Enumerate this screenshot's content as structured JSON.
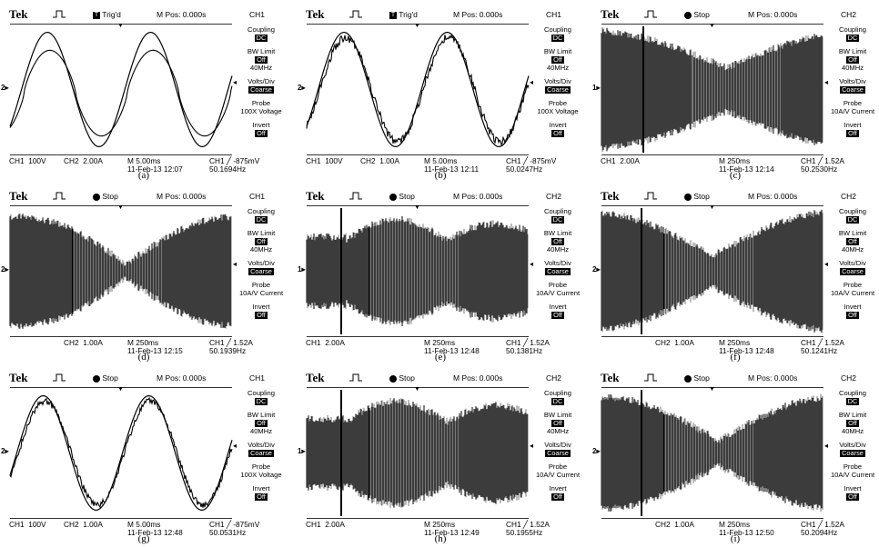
{
  "panels": [
    {
      "caption": "(a)",
      "brand": "Tek",
      "trigger_status": "Trig'd",
      "trigger_icon": "box-T",
      "m_pos": "M Pos: 0.000s",
      "channel": "CH1",
      "menu": [
        {
          "label": "Coupling",
          "value": "DC"
        },
        {
          "label": "BW Limit",
          "value": "Off",
          "extra": "40MHz"
        },
        {
          "label": "Volts/Div",
          "value": "Coarse"
        },
        {
          "label": "Probe",
          "value": "",
          "extra": "100X Voltage"
        },
        {
          "label": "Invert",
          "value": "Off"
        }
      ],
      "markers": [
        "2"
      ],
      "status_left1": "CH1  100V",
      "status_left2": "CH2  2.00A",
      "timebase": "M 5.00ms",
      "datetime": "11-Feb-13 12:07",
      "trig_level": "CH1 ╱ -875mV",
      "freq": "50.1694Hz",
      "trace": "sine2"
    },
    {
      "caption": "(b)",
      "brand": "Tek",
      "trigger_status": "Trig'd",
      "trigger_icon": "box-T",
      "m_pos": "M Pos: 0.000s",
      "channel": "CH1",
      "menu": [
        {
          "label": "Coupling",
          "value": "DC"
        },
        {
          "label": "BW Limit",
          "value": "Off",
          "extra": "40MHz"
        },
        {
          "label": "Volts/Div",
          "value": "Coarse"
        },
        {
          "label": "Probe",
          "value": "",
          "extra": "100X Voltage"
        },
        {
          "label": "Invert",
          "value": "Off"
        }
      ],
      "markers": [
        "2"
      ],
      "status_left1": "CH1  100V",
      "status_left2": "CH2  1.00A",
      "timebase": "M 5.00ms",
      "datetime": "11-Feb-13 12:11",
      "trig_level": "CH1 ╱ -875mV",
      "freq": "50.0247Hz",
      "trace": "sine_noisy"
    },
    {
      "caption": "(c)",
      "brand": "Tek",
      "trigger_status": "Stop",
      "trigger_icon": "dot",
      "m_pos": "M Pos: 0.000s",
      "channel": "CH2",
      "menu": [
        {
          "label": "Coupling",
          "value": "DC"
        },
        {
          "label": "BW Limit",
          "value": "Off",
          "extra": "40MHz"
        },
        {
          "label": "Volts/Div",
          "value": "Coarse"
        },
        {
          "label": "Probe",
          "value": "",
          "extra": "10A/V Current"
        },
        {
          "label": "Invert",
          "value": "Off"
        }
      ],
      "markers": [
        "1"
      ],
      "status_left1": "CH1  2.00A",
      "status_left2": "",
      "timebase": "M 250ms",
      "datetime": "11-Feb-13 12:14",
      "trig_level": "CH1 ╱ 1.52A",
      "freq": "50.2530Hz",
      "trace": "beat_c"
    },
    {
      "caption": "(d)",
      "brand": "Tek",
      "trigger_status": "Stop",
      "trigger_icon": "dot",
      "m_pos": "M Pos: 0.000s",
      "channel": "CH1",
      "menu": [
        {
          "label": "Coupling",
          "value": "DC"
        },
        {
          "label": "BW Limit",
          "value": "Off",
          "extra": "40MHz"
        },
        {
          "label": "Volts/Div",
          "value": "Coarse"
        },
        {
          "label": "Probe",
          "value": "",
          "extra": "10A/V Current"
        },
        {
          "label": "Invert",
          "value": "Off"
        }
      ],
      "markers": [
        "2"
      ],
      "status_left1": "",
      "status_left2": "CH2  1.00A",
      "timebase": "M 250ms",
      "datetime": "11-Feb-13 12:15",
      "trig_level": "CH1 ╱ 1.52A",
      "freq": "50.1939Hz",
      "trace": "beat_d"
    },
    {
      "caption": "(e)",
      "brand": "Tek",
      "trigger_status": "Stop",
      "trigger_icon": "dot",
      "m_pos": "M Pos: 0.000s",
      "channel": "CH2",
      "menu": [
        {
          "label": "Coupling",
          "value": "DC"
        },
        {
          "label": "BW Limit",
          "value": "Off",
          "extra": "40MHz"
        },
        {
          "label": "Volts/Div",
          "value": "Coarse"
        },
        {
          "label": "Probe",
          "value": "",
          "extra": "10A/V Current"
        },
        {
          "label": "Invert",
          "value": "Off"
        }
      ],
      "markers": [
        "1"
      ],
      "status_left1": "CH1  2.00A",
      "status_left2": "",
      "timebase": "M 250ms",
      "datetime": "11-Feb-13 12:48",
      "trig_level": "CH1 ╱ 1.52A",
      "freq": "50.1381Hz",
      "trace": "beat_e"
    },
    {
      "caption": "(f)",
      "brand": "Tek",
      "trigger_status": "Stop",
      "trigger_icon": "dot",
      "m_pos": "M Pos: 0.000s",
      "channel": "CH2",
      "menu": [
        {
          "label": "Coupling",
          "value": "DC"
        },
        {
          "label": "BW Limit",
          "value": "Off",
          "extra": "40MHz"
        },
        {
          "label": "Volts/Div",
          "value": "Coarse"
        },
        {
          "label": "Probe",
          "value": "",
          "extra": "10A/V Current"
        },
        {
          "label": "Invert",
          "value": "Off"
        }
      ],
      "markers": [
        "2"
      ],
      "status_left1": "",
      "status_left2": "CH2  1.00A",
      "timebase": "M 250ms",
      "datetime": "11-Feb-13 12:48",
      "trig_level": "CH1 ╱ 1.52A",
      "freq": "50.1241Hz",
      "trace": "beat_f"
    },
    {
      "caption": "(g)",
      "brand": "Tek",
      "trigger_status": "Stop",
      "trigger_icon": "dot",
      "m_pos": "M Pos: 0.000s",
      "channel": "CH1",
      "menu": [
        {
          "label": "Coupling",
          "value": "DC"
        },
        {
          "label": "BW Limit",
          "value": "Off",
          "extra": "40MHz"
        },
        {
          "label": "Volts/Div",
          "value": "Coarse"
        },
        {
          "label": "Probe",
          "value": "",
          "extra": "100X Voltage"
        },
        {
          "label": "Invert",
          "value": "Off"
        }
      ],
      "markers": [
        "2"
      ],
      "status_left1": "CH1  100V",
      "status_left2": "CH2  1.00A",
      "timebase": "M 5.00ms",
      "datetime": "11-Feb-13 12:48",
      "trig_level": "CH1 ╱ -875mV",
      "freq": "50.0531Hz",
      "trace": "sine_g"
    },
    {
      "caption": "(h)",
      "brand": "Tek",
      "trigger_status": "Stop",
      "trigger_icon": "dot",
      "m_pos": "M Pos: 0.000s",
      "channel": "CH2",
      "menu": [
        {
          "label": "Coupling",
          "value": "DC"
        },
        {
          "label": "BW Limit",
          "value": "Off",
          "extra": "40MHz"
        },
        {
          "label": "Volts/Div",
          "value": "Coarse"
        },
        {
          "label": "Probe",
          "value": "",
          "extra": "10A/V Current"
        },
        {
          "label": "Invert",
          "value": "Off"
        }
      ],
      "markers": [
        "1"
      ],
      "status_left1": "CH1  2.00A",
      "status_left2": "",
      "timebase": "M 250ms",
      "datetime": "11-Feb-13 12:49",
      "trig_level": "CH1 ╱ 1.52A",
      "freq": "50.1955Hz",
      "trace": "beat_e"
    },
    {
      "caption": "(i)",
      "brand": "Tek",
      "trigger_status": "Stop",
      "trigger_icon": "dot",
      "m_pos": "M Pos: 0.000s",
      "channel": "CH2",
      "menu": [
        {
          "label": "Coupling",
          "value": "DC"
        },
        {
          "label": "BW Limit",
          "value": "Off",
          "extra": "40MHz"
        },
        {
          "label": "Volts/Div",
          "value": "Coarse"
        },
        {
          "label": "Probe",
          "value": "",
          "extra": "10A/V Current"
        },
        {
          "label": "Invert",
          "value": "Off"
        }
      ],
      "markers": [
        "2"
      ],
      "status_left1": "",
      "status_left2": "CH2  1.00A",
      "timebase": "M 250ms",
      "datetime": "11-Feb-13 12:50",
      "trig_level": "CH1 ╱ 1.52A",
      "freq": "50.2094Hz",
      "trace": "beat_i"
    }
  ]
}
